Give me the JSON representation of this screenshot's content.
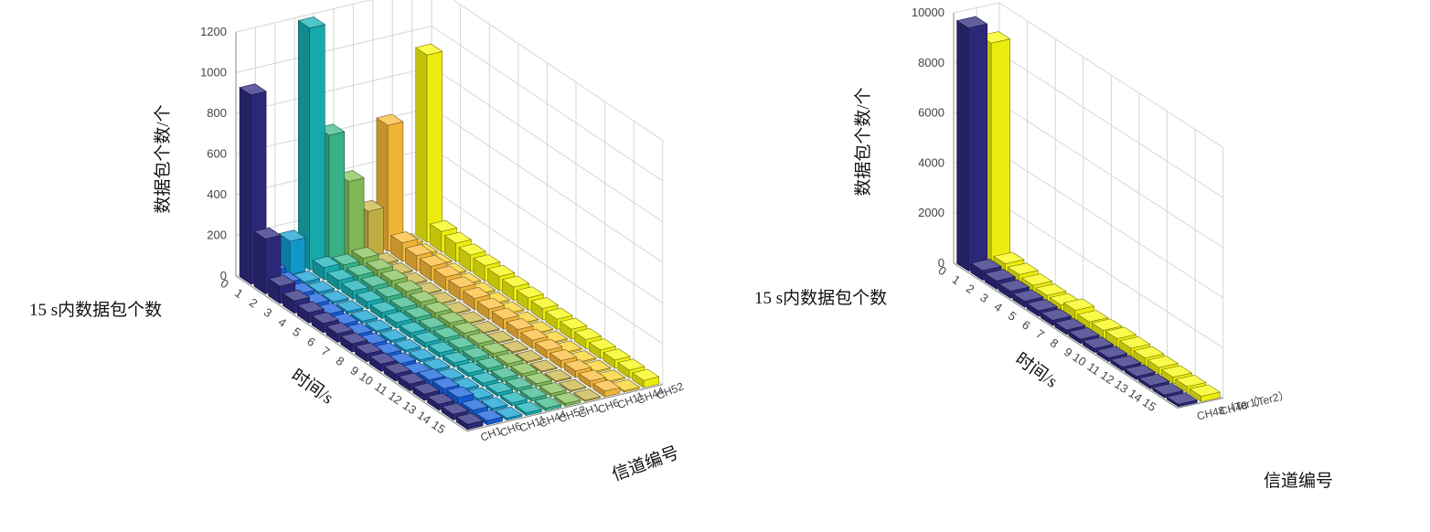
{
  "chart_data": [
    {
      "type": "bar3d",
      "side_label": "15 s内数据包个数",
      "xlabel": "时间/s",
      "ylabel": "信道编号",
      "zlabel": "数据包个数/个",
      "x_ticks": [
        "0",
        "1",
        "2",
        "3",
        "4",
        "5",
        "6",
        "7",
        "8",
        "9",
        "10",
        "11",
        "12",
        "13",
        "14",
        "15"
      ],
      "z_ticks": [
        "0",
        "200",
        "400",
        "600",
        "800",
        "1000",
        "1200"
      ],
      "zlim": [
        0,
        1200
      ],
      "categories": [
        "CH1",
        "CH6",
        "CH11",
        "CH44",
        "CH52",
        "CH1",
        "CH6",
        "CH11",
        "CH44",
        "CH52"
      ],
      "colors": [
        "#2e2a7f",
        "#1660dd",
        "#119fd2",
        "#18b1b5",
        "#3cba8e",
        "#86c159",
        "#c9b645",
        "#fcbc3b",
        "#f9d228",
        "#f8f80f"
      ],
      "values": [
        [
          930,
          270,
          85,
          60,
          50,
          45,
          42,
          40,
          38,
          36,
          35,
          33,
          31,
          29,
          27,
          25
        ],
        [
          40,
          30,
          25,
          22,
          20,
          18,
          16,
          16,
          15,
          15,
          14,
          30,
          35,
          38,
          24,
          20
        ],
        [
          165,
          12,
          10,
          10,
          10,
          10,
          10,
          10,
          10,
          10,
          10,
          10,
          10,
          10,
          10,
          10
        ],
        [
          1190,
          60,
          45,
          40,
          35,
          30,
          28,
          25,
          24,
          22,
          20,
          18,
          16,
          15,
          14,
          13
        ],
        [
          640,
          50,
          45,
          40,
          35,
          30,
          28,
          25,
          24,
          22,
          20,
          18,
          16,
          15,
          14,
          13
        ],
        [
          390,
          60,
          50,
          45,
          40,
          35,
          30,
          28,
          25,
          22,
          20,
          18,
          16,
          15,
          14,
          13
        ],
        [
          220,
          10,
          8,
          7,
          7,
          7,
          6,
          6,
          6,
          6,
          6,
          6,
          6,
          6,
          6,
          6
        ],
        [
          620,
          90,
          75,
          70,
          65,
          60,
          55,
          50,
          48,
          45,
          40,
          38,
          35,
          32,
          30,
          28
        ],
        [
          10,
          9,
          9,
          8,
          8,
          8,
          8,
          8,
          7,
          7,
          7,
          7,
          7,
          7,
          7,
          7
        ],
        [
          920,
          100,
          90,
          80,
          75,
          70,
          65,
          60,
          55,
          50,
          48,
          45,
          42,
          40,
          38,
          35
        ]
      ]
    },
    {
      "type": "bar3d",
      "side_label": "15 s内数据包个数",
      "xlabel": "时间/s",
      "ylabel": "信道编号",
      "zlabel": "数据包个数/个",
      "x_ticks": [
        "0",
        "1",
        "2",
        "3",
        "4",
        "5",
        "6",
        "7",
        "8",
        "9",
        "10",
        "11",
        "12",
        "13",
        "14",
        "15"
      ],
      "z_ticks": [
        "0",
        "2000",
        "4000",
        "6000",
        "8000",
        "10000"
      ],
      "zlim": [
        0,
        10000
      ],
      "categories": [
        "CH48（Ter1）",
        "CH48（Ter2）"
      ],
      "colors": [
        "#2e2a7f",
        "#f8f80f"
      ],
      "values": [
        [
          9700,
          380,
          330,
          280,
          240,
          220,
          200,
          180,
          170,
          160,
          150,
          140,
          130,
          120,
          110,
          100
        ],
        [
          8900,
          450,
          380,
          310,
          270,
          250,
          400,
          300,
          320,
          350,
          330,
          300,
          280,
          260,
          240,
          220
        ]
      ]
    }
  ]
}
